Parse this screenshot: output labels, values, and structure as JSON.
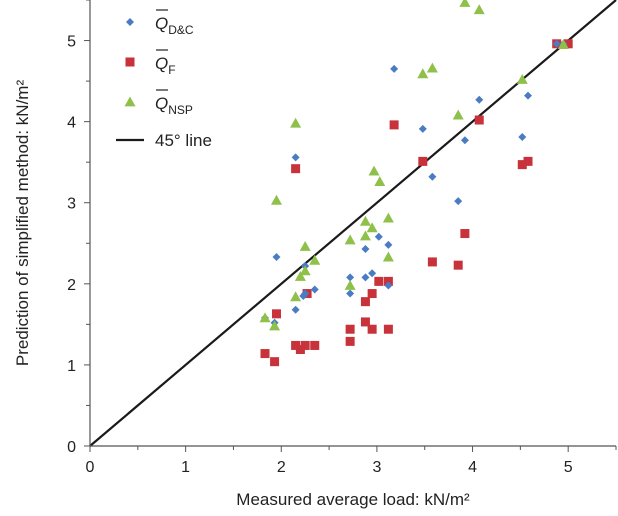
{
  "chart_data": {
    "type": "scatter",
    "xlabel": "Measured average load: kN/m²",
    "ylabel": "Prediction of simplified method: kN/m²",
    "xlim": [
      0,
      5.5
    ],
    "ylim": [
      0,
      5.5
    ],
    "x_ticks": [
      "0",
      "1",
      "2",
      "3",
      "4",
      "5"
    ],
    "y_ticks": [
      "0",
      "1",
      "2",
      "3",
      "4",
      "5"
    ],
    "grid": false,
    "legend_position": "top-left",
    "series": [
      {
        "name": "Q̄D&C",
        "legend_main": "Q",
        "legend_sub": "D&C",
        "marker": "diamond",
        "color": "#4a7cc4",
        "points": [
          [
            1.83,
            1.58
          ],
          [
            1.93,
            1.52
          ],
          [
            1.95,
            2.33
          ],
          [
            2.15,
            1.68
          ],
          [
            2.15,
            3.56
          ],
          [
            2.23,
            1.85
          ],
          [
            2.25,
            2.22
          ],
          [
            2.25,
            1.88
          ],
          [
            2.35,
            1.93
          ],
          [
            2.72,
            1.88
          ],
          [
            2.72,
            2.08
          ],
          [
            2.88,
            2.43
          ],
          [
            2.88,
            2.08
          ],
          [
            2.95,
            2.13
          ],
          [
            3.02,
            2.58
          ],
          [
            3.12,
            2.48
          ],
          [
            3.12,
            1.98
          ],
          [
            3.18,
            4.65
          ],
          [
            3.48,
            3.91
          ],
          [
            3.58,
            3.32
          ],
          [
            3.85,
            3.02
          ],
          [
            3.92,
            3.77
          ],
          [
            4.07,
            4.27
          ],
          [
            4.52,
            3.81
          ],
          [
            4.58,
            4.32
          ],
          [
            4.88,
            4.96
          ],
          [
            4.95,
            4.96
          ]
        ]
      },
      {
        "name": "Q̄F",
        "legend_main": "Q",
        "legend_sub": "F",
        "marker": "square",
        "color": "#c8323a",
        "points": [
          [
            1.83,
            1.14
          ],
          [
            1.93,
            1.04
          ],
          [
            1.95,
            1.63
          ],
          [
            2.15,
            3.42
          ],
          [
            2.15,
            1.24
          ],
          [
            2.2,
            1.19
          ],
          [
            2.25,
            1.24
          ],
          [
            2.27,
            1.88
          ],
          [
            2.35,
            1.24
          ],
          [
            2.72,
            1.44
          ],
          [
            2.72,
            1.29
          ],
          [
            2.88,
            1.78
          ],
          [
            2.88,
            1.53
          ],
          [
            2.95,
            1.44
          ],
          [
            2.95,
            1.88
          ],
          [
            3.02,
            2.03
          ],
          [
            3.12,
            2.03
          ],
          [
            3.12,
            1.44
          ],
          [
            3.18,
            3.96
          ],
          [
            3.48,
            3.51
          ],
          [
            3.58,
            2.27
          ],
          [
            3.85,
            2.23
          ],
          [
            3.92,
            2.62
          ],
          [
            4.07,
            4.02
          ],
          [
            4.52,
            3.47
          ],
          [
            4.58,
            3.51
          ],
          [
            4.88,
            4.96
          ],
          [
            5.0,
            4.96
          ]
        ]
      },
      {
        "name": "Q̄NSP",
        "legend_main": "Q",
        "legend_sub": "NSP",
        "marker": "triangle",
        "color": "#8fc04a",
        "points": [
          [
            1.83,
            1.58
          ],
          [
            1.93,
            1.48
          ],
          [
            1.95,
            3.03
          ],
          [
            2.15,
            3.98
          ],
          [
            2.15,
            1.84
          ],
          [
            2.2,
            2.09
          ],
          [
            2.25,
            2.46
          ],
          [
            2.25,
            2.16
          ],
          [
            2.35,
            2.29
          ],
          [
            2.72,
            2.54
          ],
          [
            2.72,
            1.98
          ],
          [
            2.88,
            2.77
          ],
          [
            2.88,
            2.59
          ],
          [
            2.95,
            2.69
          ],
          [
            2.97,
            3.39
          ],
          [
            3.03,
            3.26
          ],
          [
            3.12,
            2.81
          ],
          [
            3.12,
            2.33
          ],
          [
            3.48,
            4.59
          ],
          [
            3.58,
            4.66
          ],
          [
            3.85,
            4.08
          ],
          [
            3.92,
            5.47
          ],
          [
            4.07,
            5.38
          ],
          [
            4.52,
            4.52
          ],
          [
            4.95,
            4.95
          ]
        ]
      }
    ],
    "reference_line": {
      "name": "45° line",
      "color": "#1a1a1a",
      "from": [
        0,
        0
      ],
      "to": [
        5.5,
        5.5
      ]
    }
  }
}
